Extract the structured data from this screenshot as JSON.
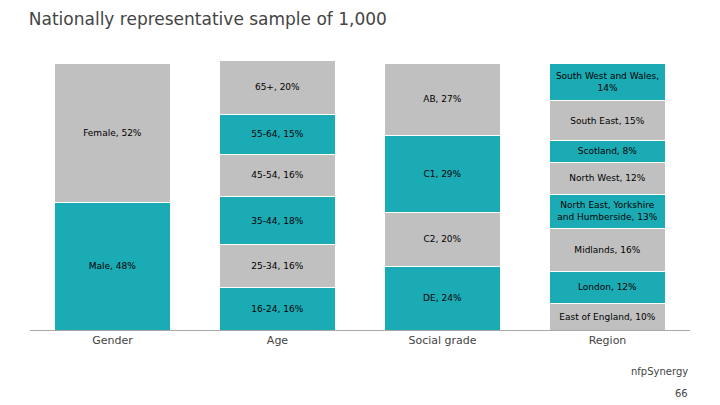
{
  "chart_data": {
    "type": "bar",
    "title": "Nationally representative sample of 1,000",
    "categories": [
      "Gender",
      "Age",
      "Social grade",
      "Region"
    ],
    "stacks": [
      {
        "values": [
          48,
          52
        ],
        "value_labels": [
          "Male, 48%",
          "Female, 52%"
        ],
        "colors": [
          "#1AABB5",
          "#C0C0C0"
        ]
      },
      {
        "values": [
          16,
          16,
          18,
          16,
          15,
          20
        ],
        "value_labels": [
          "16-24, 16%",
          "25-34, 16%",
          "35-44, 18%",
          "45-54, 16%",
          "55-64, 15%",
          "65+, 20%"
        ],
        "colors": [
          "#1AABB5",
          "#C0C0C0",
          "#1AABB5",
          "#C0C0C0",
          "#1AABB5",
          "#C0C0C0"
        ]
      },
      {
        "values": [
          24,
          20,
          29,
          27
        ],
        "value_labels": [
          "DE, 24%",
          "C2, 20%",
          "C1, 29%",
          "AB, 27%"
        ],
        "colors": [
          "#1AABB5",
          "#C0C0C0",
          "#1AABB5",
          "#C0C0C0"
        ]
      },
      {
        "values": [
          10,
          12,
          16,
          13,
          12,
          8,
          15,
          14
        ],
        "value_labels": [
          "East of England, 10%",
          "London, 12%",
          "Midlands, 16%",
          "North East, Yorkshire\nand Humberside, 13%",
          "North West, 12%",
          "Scotland, 8%",
          "South East, 15%",
          "South West and Wales,\n14%"
        ],
        "colors": [
          "#C0C0C0",
          "#1AABB5",
          "#C0C0C0",
          "#1AABB5",
          "#C0C0C0",
          "#1AABB5",
          "#C0C0C0",
          "#1AABB5"
        ]
      }
    ],
    "ylim": [
      0,
      105
    ],
    "yticks": [],
    "stacked": true,
    "data_labels": true,
    "tick_labels": "x",
    "grid": false,
    "annotations": [
      "nfpSynergy",
      "66"
    ]
  }
}
